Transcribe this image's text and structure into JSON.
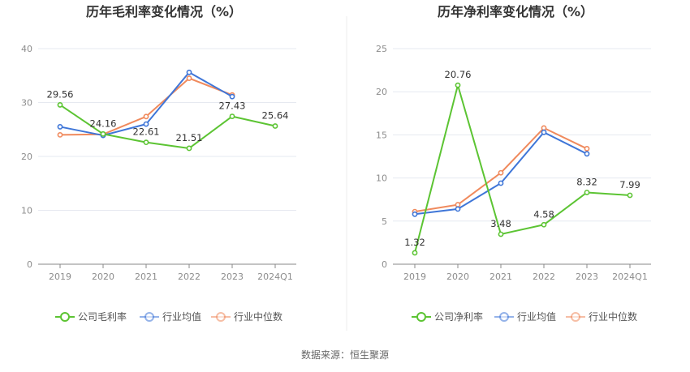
{
  "colors": {
    "company": "#5cc433",
    "industry_avg": "#3f76d8",
    "industry_median": "#f08a5d",
    "grid": "#e6e9f0",
    "axis": "#888888",
    "divider": "#eeeeee"
  },
  "source": "数据来源：恒生聚源",
  "chart_data": [
    {
      "type": "line",
      "title": "历年毛利率变化情况（%）",
      "categories": [
        "2019",
        "2020",
        "2021",
        "2022",
        "2023",
        "2024Q1"
      ],
      "ylim": [
        0,
        40
      ],
      "yticks": [
        0,
        10,
        20,
        30,
        40
      ],
      "grid": true,
      "legend_position": "bottom",
      "series": [
        {
          "name": "公司毛利率",
          "color_key": "company",
          "values": [
            29.56,
            24.16,
            22.61,
            21.51,
            27.43,
            25.64
          ],
          "labels": [
            "29.56",
            "24.16",
            "22.61",
            "21.51",
            "27.43",
            "25.64"
          ]
        },
        {
          "name": "行业均值",
          "color_key": "industry_avg",
          "values": [
            25.5,
            23.9,
            26.0,
            35.6,
            31.1,
            null
          ]
        },
        {
          "name": "行业中位数",
          "color_key": "industry_median",
          "values": [
            24.0,
            24.1,
            27.4,
            34.5,
            31.4,
            null
          ]
        }
      ]
    },
    {
      "type": "line",
      "title": "历年净利率变化情况（%）",
      "categories": [
        "2019",
        "2020",
        "2021",
        "2022",
        "2023",
        "2024Q1"
      ],
      "ylim": [
        0,
        25
      ],
      "yticks": [
        0,
        5,
        10,
        15,
        20,
        25
      ],
      "grid": true,
      "legend_position": "bottom",
      "series": [
        {
          "name": "公司净利率",
          "color_key": "company",
          "values": [
            1.32,
            20.76,
            3.48,
            4.58,
            8.32,
            7.99
          ],
          "labels": [
            "1.32",
            "20.76",
            "3.48",
            "4.58",
            "8.32",
            "7.99"
          ]
        },
        {
          "name": "行业均值",
          "color_key": "industry_avg",
          "values": [
            5.8,
            6.4,
            9.4,
            15.3,
            12.8,
            null
          ]
        },
        {
          "name": "行业中位数",
          "color_key": "industry_median",
          "values": [
            6.1,
            6.9,
            10.6,
            15.8,
            13.4,
            null
          ]
        }
      ]
    }
  ]
}
